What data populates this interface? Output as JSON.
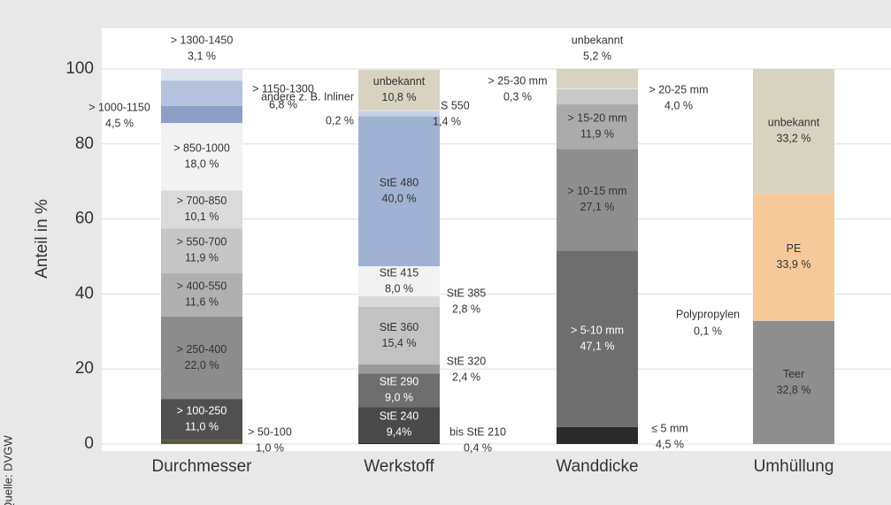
{
  "chart_data": {
    "type": "stacked-bar",
    "y_label": "Anteil in %",
    "source": "Quelle: DVGW",
    "ylim": [
      0,
      100
    ],
    "yticks": [
      0,
      20,
      40,
      60,
      80,
      100
    ],
    "grid": true,
    "stacks": [
      {
        "category": "Durchmesser",
        "segments": [
          {
            "name": "> 50-100",
            "value": 1.0,
            "value_label": "1,0 %",
            "color": "#5c5a2e"
          },
          {
            "name": "> 100-250",
            "value": 11.0,
            "value_label": "11,0 %",
            "color": "#505050"
          },
          {
            "name": "> 250-400",
            "value": 22.0,
            "value_label": "22,0 %",
            "color": "#8c8c8c"
          },
          {
            "name": "> 400-550",
            "value": 11.6,
            "value_label": "11,6 %",
            "color": "#b0b0b0"
          },
          {
            "name": "> 550-700",
            "value": 11.9,
            "value_label": "11,9 %",
            "color": "#c6c6c6"
          },
          {
            "name": "> 700-850",
            "value": 10.1,
            "value_label": "10,1 %",
            "color": "#dadada"
          },
          {
            "name": "> 850-1000",
            "value": 18.0,
            "value_label": "18,0 %",
            "color": "#f2f2f2"
          },
          {
            "name": "> 1000-1150",
            "value": 4.5,
            "value_label": "4,5 %",
            "color": "#8c9fc6"
          },
          {
            "name": "> 1150-1300",
            "value": 6.8,
            "value_label": "6,8 %",
            "color": "#b4c2dd"
          },
          {
            "name": "> 1300-1450",
            "value": 3.1,
            "value_label": "3,1 %",
            "color": "#dde3ef"
          }
        ]
      },
      {
        "category": "Werkstoff",
        "segments": [
          {
            "name": "bis StE 210",
            "value": 0.4,
            "value_label": "0,4 %",
            "color": "#222222"
          },
          {
            "name": "StE 240",
            "value": 9.4,
            "value_label": "9,4%",
            "color": "#4a4a4a"
          },
          {
            "name": "StE 290",
            "value": 9.0,
            "value_label": "9,0 %",
            "color": "#6e6e6e"
          },
          {
            "name": "StE 320",
            "value": 2.4,
            "value_label": "2,4 %",
            "color": "#9a9a9a"
          },
          {
            "name": "StE 360",
            "value": 15.4,
            "value_label": "15,4 %",
            "color": "#c2c2c2"
          },
          {
            "name": "StE 385",
            "value": 2.8,
            "value_label": "2,8 %",
            "color": "#d9d9d9"
          },
          {
            "name": "StE 415",
            "value": 8.0,
            "value_label": "8,0 %",
            "color": "#f2f2f2"
          },
          {
            "name": "StE 480",
            "value": 40.0,
            "value_label": "40,0 %",
            "color": "#9fb2d3"
          },
          {
            "name": "GRS 550",
            "value": 1.4,
            "value_label": "1,4 %",
            "color": "#c7d1e6"
          },
          {
            "name": "andere z. B. Inliner",
            "value": 0.2,
            "value_label": "0,2 %",
            "color": "#e6e9f0"
          },
          {
            "name": "unbekannt",
            "value": 10.8,
            "value_label": "10,8 %",
            "color": "#d8d3c0"
          }
        ]
      },
      {
        "category": "Wanddicke",
        "segments": [
          {
            "name": "≤ 5 mm",
            "value": 4.5,
            "value_label": "4,5 %",
            "color": "#2a2a2a"
          },
          {
            "name": "> 5-10 mm",
            "value": 47.1,
            "value_label": "47,1 %",
            "color": "#6e6e6e"
          },
          {
            "name": "> 10-15 mm",
            "value": 27.1,
            "value_label": "27,1 %",
            "color": "#8e8e8e"
          },
          {
            "name": "> 15-20 mm",
            "value": 11.9,
            "value_label": "11,9 %",
            "color": "#ababab"
          },
          {
            "name": "> 20-25 mm",
            "value": 4.0,
            "value_label": "4,0 %",
            "color": "#c8c8c8"
          },
          {
            "name": "> 25-30 mm",
            "value": 0.3,
            "value_label": "0,3 %",
            "color": "#e0e0e0"
          },
          {
            "name": "unbekannt",
            "value": 5.2,
            "value_label": "5,2 %",
            "color": "#d8d3c0"
          }
        ]
      },
      {
        "category": "Umhüllung",
        "segments": [
          {
            "name": "Teer",
            "value": 32.8,
            "value_label": "32,8 %",
            "color": "#8e8e8e"
          },
          {
            "name": "Polypropylen",
            "value": 0.1,
            "value_label": "0,1 %",
            "color": "#c8c8c8"
          },
          {
            "name": "PE",
            "value": 33.9,
            "value_label": "33,9 %",
            "color": "#f7c99a"
          },
          {
            "name": "unbekannt",
            "value": 33.2,
            "value_label": "33,2 %",
            "color": "#d8d3c0"
          }
        ]
      }
    ]
  }
}
